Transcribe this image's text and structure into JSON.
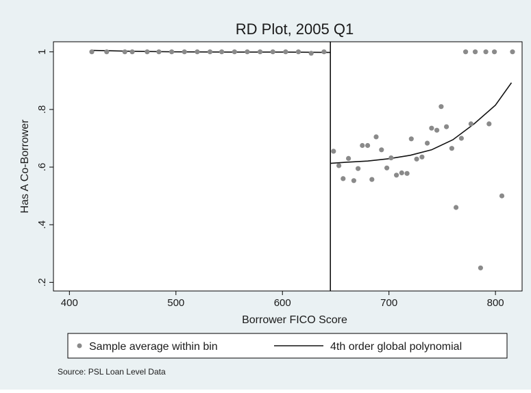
{
  "chart_data": {
    "type": "scatter",
    "title": "RD Plot, 2005 Q1",
    "xlabel": "Borrower FICO Score",
    "ylabel": "Has A Co-Borrower",
    "xlim": [
      385,
      825
    ],
    "ylim": [
      0.17,
      1.035
    ],
    "x_ticks": [
      400,
      500,
      600,
      700,
      800
    ],
    "x_tick_labels": [
      "400",
      "500",
      "600",
      "700",
      "800"
    ],
    "y_ticks": [
      0.2,
      0.4,
      0.6,
      0.8,
      1.0
    ],
    "y_tick_labels": [
      ".2",
      ".4",
      ".6",
      ".8",
      "1"
    ],
    "grid": false,
    "cutoff": 645,
    "legend": {
      "position": "bottom",
      "entries": [
        "Sample average within bin",
        "4th order global polynomial"
      ]
    },
    "note": "Source: PSL Loan Level Data",
    "series": [
      {
        "name": "Sample average within bin",
        "kind": "scatter",
        "color": "#8a8a8a",
        "points": [
          [
            421,
            1.0
          ],
          [
            435,
            1.0
          ],
          [
            452,
            1.0
          ],
          [
            459,
            1.0
          ],
          [
            473,
            1.0
          ],
          [
            484,
            1.0
          ],
          [
            496,
            1.0
          ],
          [
            508,
            1.0
          ],
          [
            520,
            1.0
          ],
          [
            532,
            1.0
          ],
          [
            543,
            1.0
          ],
          [
            555,
            1.0
          ],
          [
            567,
            1.0
          ],
          [
            579,
            1.0
          ],
          [
            591,
            1.0
          ],
          [
            603,
            1.0
          ],
          [
            615,
            1.0
          ],
          [
            627,
            0.995
          ],
          [
            639,
            1.0
          ],
          [
            648,
            0.655
          ],
          [
            653,
            0.605
          ],
          [
            657,
            0.56
          ],
          [
            662,
            0.63
          ],
          [
            667,
            0.553
          ],
          [
            671,
            0.595
          ],
          [
            675,
            0.675
          ],
          [
            680,
            0.675
          ],
          [
            684,
            0.557
          ],
          [
            688,
            0.705
          ],
          [
            693,
            0.66
          ],
          [
            698,
            0.597
          ],
          [
            702,
            0.632
          ],
          [
            707,
            0.572
          ],
          [
            712,
            0.58
          ],
          [
            717,
            0.578
          ],
          [
            721,
            0.698
          ],
          [
            726,
            0.628
          ],
          [
            731,
            0.635
          ],
          [
            736,
            0.683
          ],
          [
            740,
            0.735
          ],
          [
            745,
            0.728
          ],
          [
            749,
            0.81
          ],
          [
            754,
            0.74
          ],
          [
            759,
            0.665
          ],
          [
            763,
            0.46
          ],
          [
            768,
            0.7
          ],
          [
            772,
            1.0
          ],
          [
            777,
            0.75
          ],
          [
            781,
            1.0
          ],
          [
            786,
            0.25
          ],
          [
            791,
            1.0
          ],
          [
            794,
            0.75
          ],
          [
            799,
            1.0
          ],
          [
            806,
            0.5
          ],
          [
            816,
            1.0
          ]
        ]
      },
      {
        "name": "4th order global polynomial",
        "kind": "line",
        "color": "#111111",
        "segments": [
          [
            [
              421,
              1.005
            ],
            [
              460,
              1.002
            ],
            [
              500,
              1.0
            ],
            [
              550,
              0.999
            ],
            [
              600,
              0.999
            ],
            [
              645,
              0.998
            ]
          ],
          [
            [
              645,
              0.613
            ],
            [
              660,
              0.617
            ],
            [
              680,
              0.621
            ],
            [
              700,
              0.629
            ],
            [
              720,
              0.641
            ],
            [
              740,
              0.66
            ],
            [
              760,
              0.695
            ],
            [
              780,
              0.75
            ],
            [
              800,
              0.815
            ],
            [
              815,
              0.893
            ]
          ]
        ]
      }
    ]
  }
}
